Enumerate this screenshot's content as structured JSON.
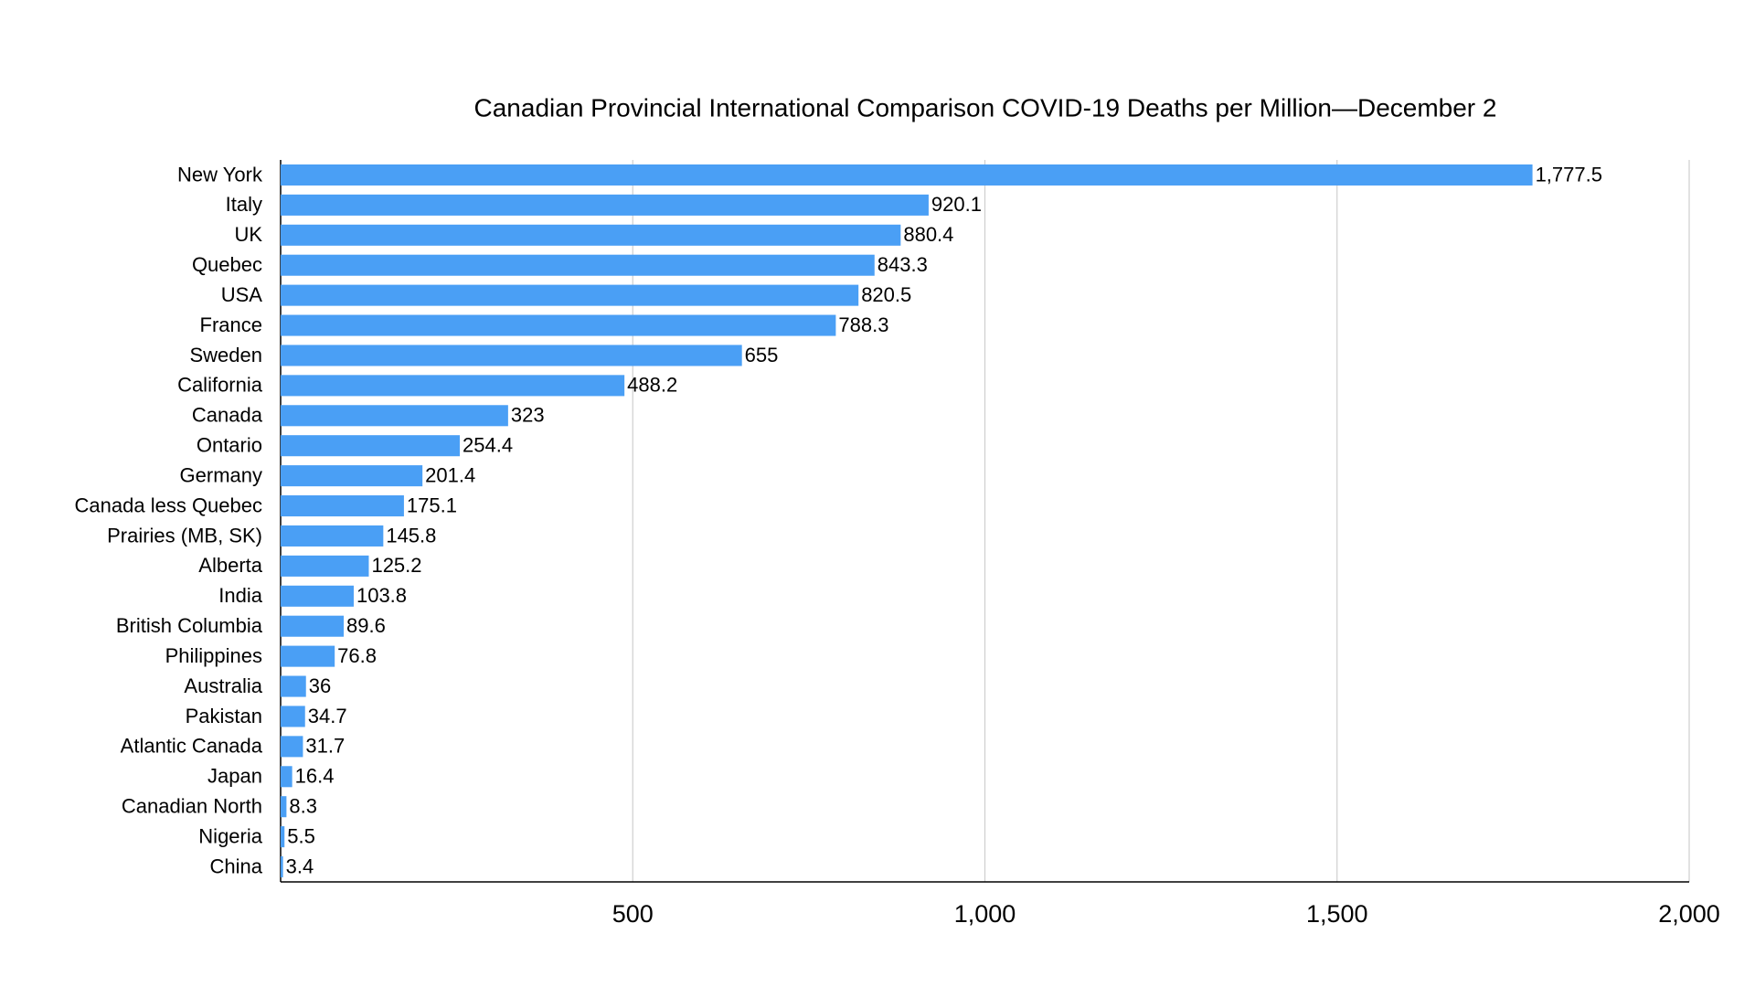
{
  "chart_data": {
    "type": "barh",
    "title": "Canadian Provincial International Comparison COVID-19 Deaths per Million—December 2",
    "categories": [
      "New York",
      "Italy",
      "UK",
      "Quebec",
      "USA",
      "France",
      "Sweden",
      "California",
      "Canada",
      "Ontario",
      "Germany",
      "Canada less Quebec",
      "Prairies (MB, SK)",
      "Alberta",
      "India",
      "British Columbia",
      "Philippines",
      "Australia",
      "Pakistan",
      "Atlantic Canada",
      "Japan",
      "Canadian North",
      "Nigeria",
      "China"
    ],
    "values": [
      1777.5,
      920.1,
      880.4,
      843.3,
      820.5,
      788.3,
      655,
      488.2,
      323,
      254.4,
      201.4,
      175.1,
      145.8,
      125.2,
      103.8,
      89.6,
      76.8,
      36,
      34.7,
      31.7,
      16.4,
      8.3,
      5.5,
      3.4
    ],
    "value_labels": [
      "1,777.5",
      "920.1",
      "880.4",
      "843.3",
      "820.5",
      "788.3",
      "655",
      "488.2",
      "323",
      "254.4",
      "201.4",
      "175.1",
      "145.8",
      "125.2",
      "103.8",
      "89.6",
      "76.8",
      "36",
      "34.7",
      "31.7",
      "16.4",
      "8.3",
      "5.5",
      "3.4"
    ],
    "color": "#4a9ff5",
    "xlim": [
      0,
      2000
    ],
    "xticks": [
      500,
      {
        "value": 1000,
        "label": "1,000"
      },
      {
        "value": 1500,
        "label": "1,500"
      },
      {
        "value": 2000,
        "label": "2,000"
      }
    ],
    "grid": true
  }
}
